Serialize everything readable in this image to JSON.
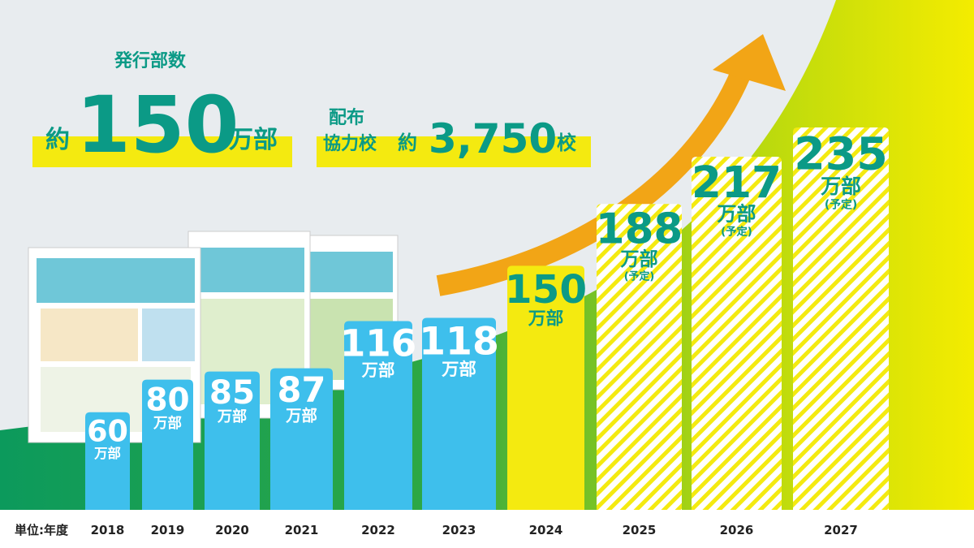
{
  "header": {
    "label": "発行部数",
    "prefix": "約",
    "number": "150",
    "unit": "万部"
  },
  "schools": {
    "label_1": "配布",
    "label_2": "協力校",
    "prefix": "約",
    "number": "3,750",
    "unit": "校"
  },
  "chart_data": {
    "type": "bar",
    "categories": [
      "2018",
      "2019",
      "2020",
      "2021",
      "2022",
      "2023",
      "2024",
      "2025",
      "2026",
      "2027"
    ],
    "values": [
      60,
      80,
      85,
      87,
      116,
      118,
      150,
      188,
      217,
      235
    ],
    "unit": "万部",
    "annotations": [
      null,
      null,
      null,
      null,
      null,
      null,
      null,
      "(予定)",
      "(予定)",
      "(予定)"
    ],
    "colors": [
      "#3ebfec",
      "#3ebfec",
      "#3ebfec",
      "#3ebfec",
      "#3ebfec",
      "#3ebfec",
      "#f4ea10",
      "#f4ea10",
      "#f4ea10",
      "#f4ea10"
    ],
    "hatched": [
      false,
      false,
      false,
      false,
      false,
      false,
      false,
      true,
      true,
      true
    ],
    "label_colors": [
      "#ffffff",
      "#ffffff",
      "#ffffff",
      "#ffffff",
      "#ffffff",
      "#ffffff",
      "#0b9a86",
      "#0b9a86",
      "#0b9a86",
      "#0b9a86"
    ],
    "ylim": [
      0,
      235
    ],
    "xlabel": "単位:年度"
  }
}
